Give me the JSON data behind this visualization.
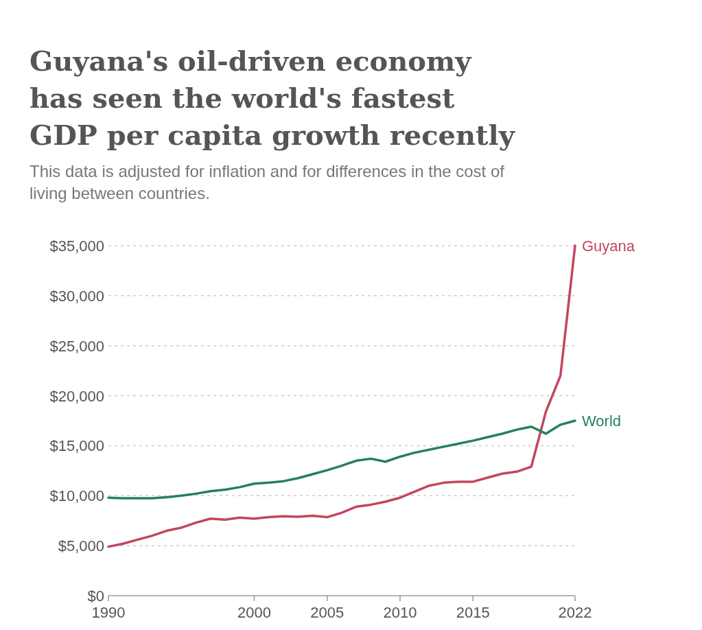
{
  "chart_data": {
    "type": "line",
    "title": "Guyana's oil-driven economy has seen the world's fastest GDP per capita growth recently",
    "subtitle": "This data is adjusted for inflation and for differences in the cost of living between countries.",
    "x": [
      1990,
      1991,
      1992,
      1993,
      1994,
      1995,
      1996,
      1997,
      1998,
      1999,
      2000,
      2001,
      2002,
      2003,
      2004,
      2005,
      2006,
      2007,
      2008,
      2009,
      2010,
      2011,
      2012,
      2013,
      2014,
      2015,
      2016,
      2017,
      2018,
      2019,
      2020,
      2021,
      2022
    ],
    "series": [
      {
        "name": "Guyana",
        "color": "#c4455f",
        "values": [
          4900,
          5200,
          5600,
          6000,
          6500,
          6800,
          7300,
          7700,
          7600,
          7800,
          7700,
          7850,
          7950,
          7900,
          8000,
          7850,
          8300,
          8900,
          9100,
          9400,
          9800,
          10400,
          11000,
          11300,
          11400,
          11400,
          11800,
          12200,
          12400,
          12900,
          18400,
          22000,
          35000
        ]
      },
      {
        "name": "World",
        "color": "#26805e",
        "values": [
          9800,
          9750,
          9750,
          9750,
          9850,
          10000,
          10200,
          10450,
          10600,
          10850,
          11200,
          11300,
          11450,
          11750,
          12150,
          12550,
          13000,
          13500,
          13700,
          13400,
          13900,
          14300,
          14600,
          14900,
          15200,
          15500,
          15850,
          16200,
          16600,
          16900,
          16200,
          17100,
          17500
        ]
      }
    ],
    "xlim": [
      1990,
      2022
    ],
    "xticks": [
      1990,
      2000,
      2005,
      2010,
      2015,
      2022
    ],
    "ylim": [
      0,
      35000
    ],
    "yticks": [
      {
        "value": 0,
        "label": "$0"
      },
      {
        "value": 5000,
        "label": "$5,000"
      },
      {
        "value": 10000,
        "label": "$10,000"
      },
      {
        "value": 15000,
        "label": "$15,000"
      },
      {
        "value": 20000,
        "label": "$20,000"
      },
      {
        "value": 25000,
        "label": "$25,000"
      },
      {
        "value": 30000,
        "label": "$30,000"
      },
      {
        "value": 35000,
        "label": "$35,000"
      }
    ],
    "grid": "y",
    "legend": "right",
    "line_style": "solid"
  }
}
